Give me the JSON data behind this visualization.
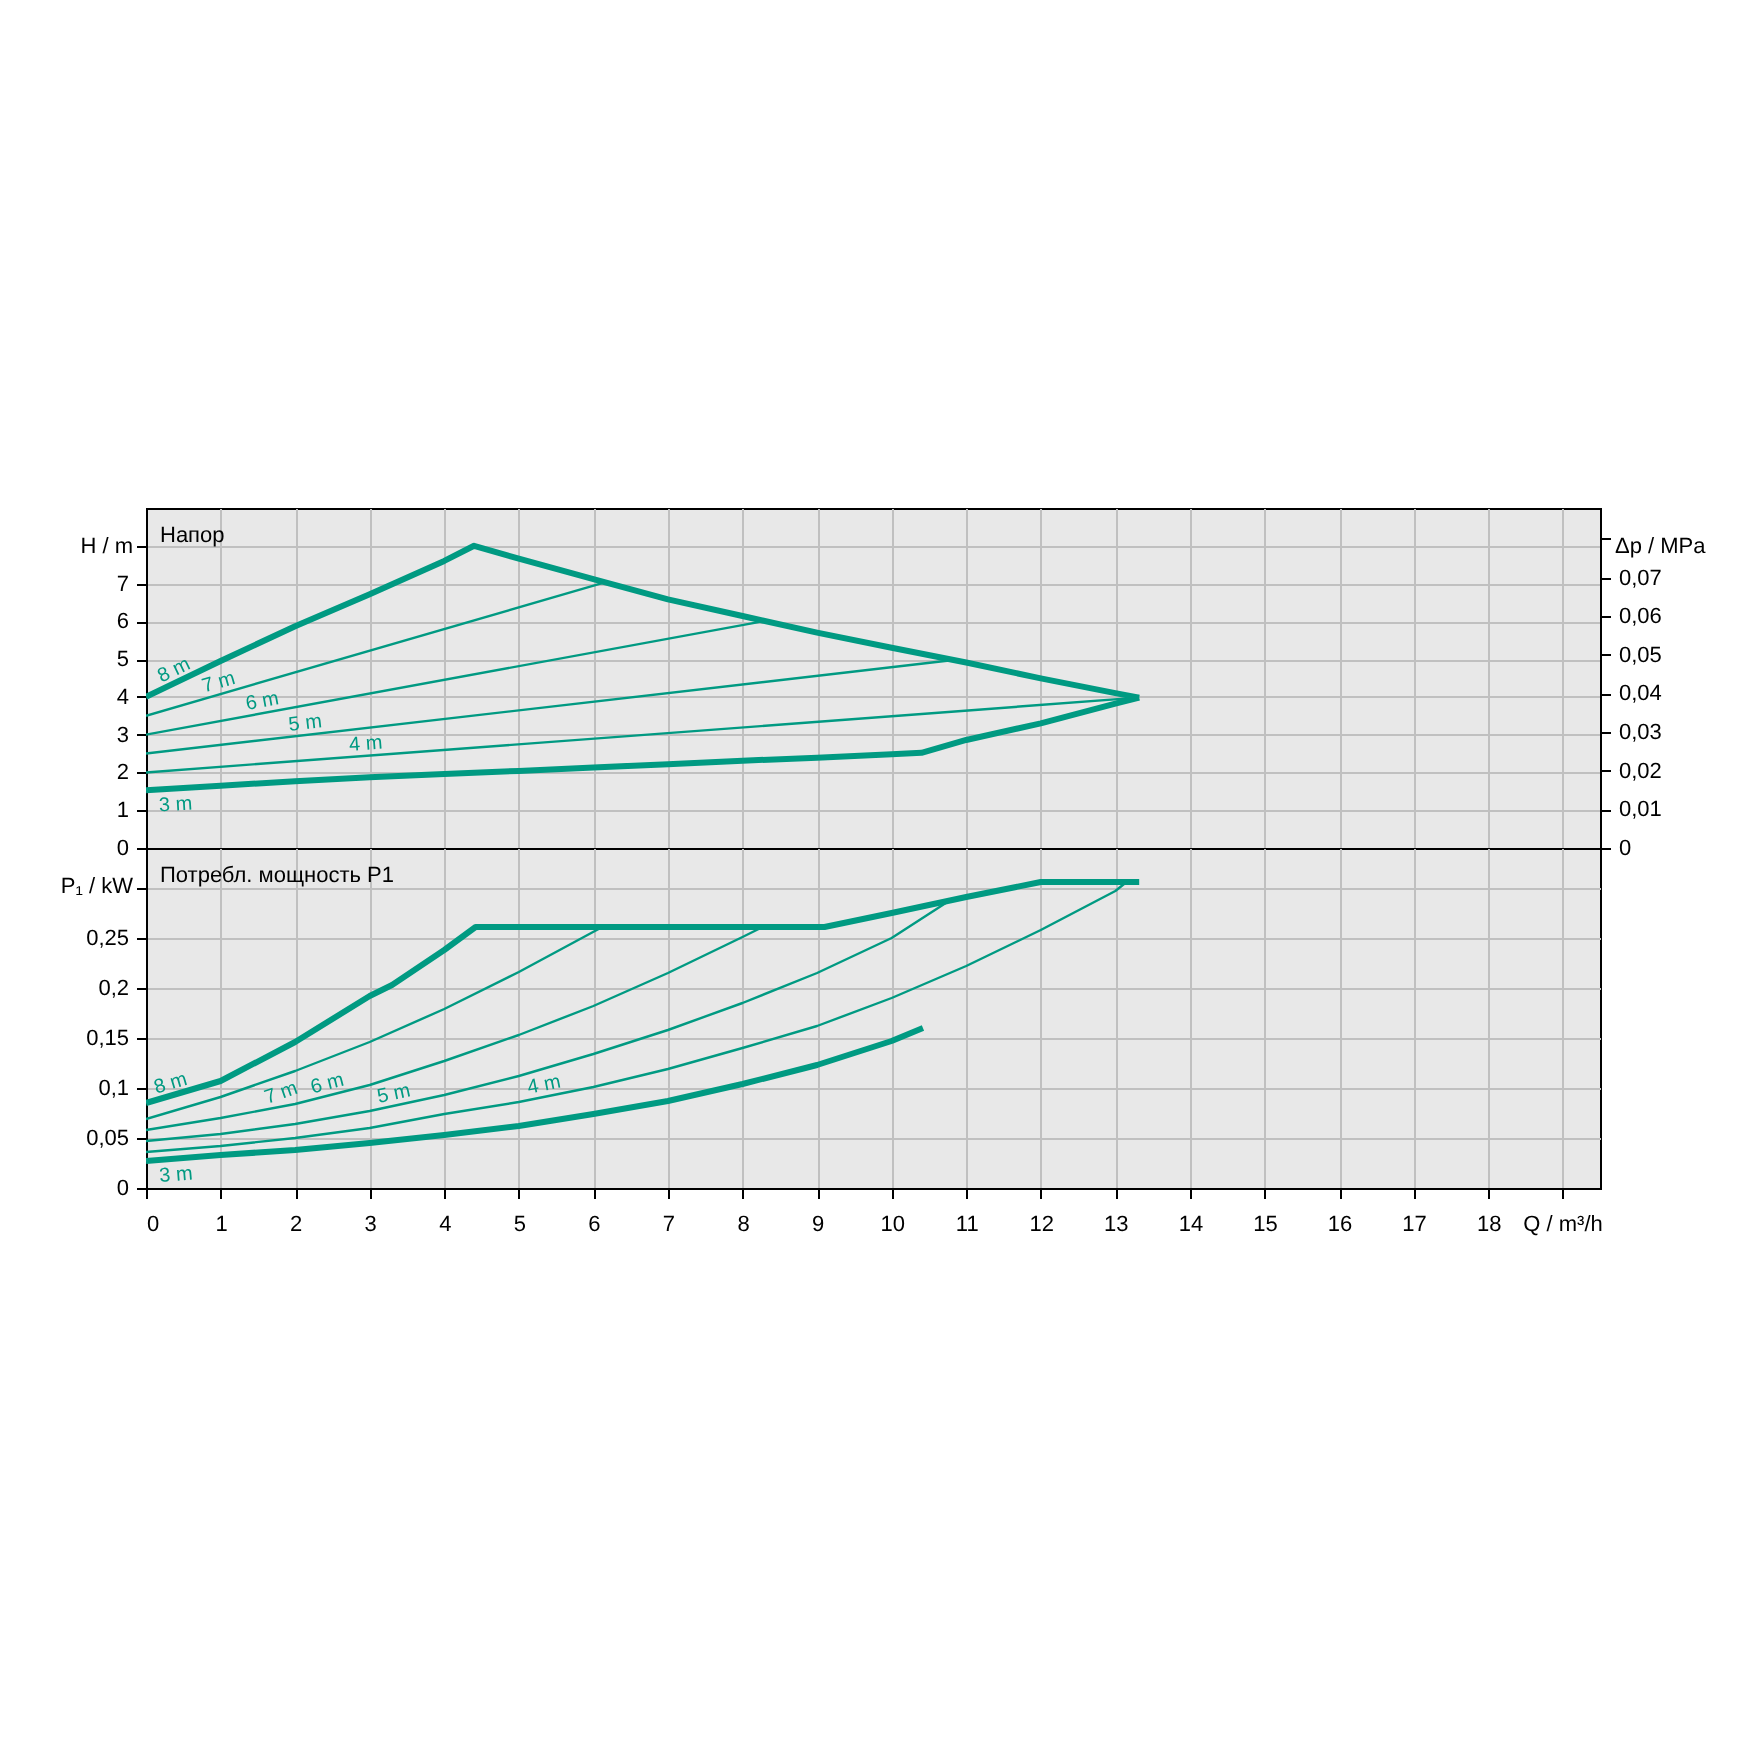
{
  "chart_data": [
    {
      "type": "line",
      "title": "Напор",
      "ylabel": "H / m",
      "y2label": "Δp / MPa",
      "xlim": [
        0,
        19.5
      ],
      "xticks": [
        0,
        1,
        2,
        3,
        4,
        5,
        6,
        7,
        8,
        9,
        10,
        11,
        12,
        13,
        14,
        15,
        16,
        17,
        18,
        19
      ],
      "ylim": [
        0,
        9
      ],
      "yticks": [
        0,
        1,
        2,
        3,
        4,
        5,
        6,
        7,
        {
          "value": 8,
          "label": null
        }
      ],
      "y2lim": [
        0,
        0.088
      ],
      "y2ticks": [
        0,
        {
          "value": 0.01,
          "label": "0,01"
        },
        {
          "value": 0.02,
          "label": "0,02"
        },
        {
          "value": 0.03,
          "label": "0,03"
        },
        {
          "value": 0.04,
          "label": "0,04"
        },
        {
          "value": 0.05,
          "label": "0,05"
        },
        {
          "value": 0.06,
          "label": "0,06"
        },
        {
          "value": 0.07,
          "label": "0,07"
        },
        {
          "value": 0.08,
          "label": null
        }
      ],
      "grid": true,
      "tick_labels": "y",
      "series": [
        {
          "name": "8 m",
          "color": "#009a82",
          "x": [
            0,
            1,
            2,
            3,
            4,
            4.4,
            5,
            6,
            7,
            8,
            9,
            10,
            11,
            12,
            13,
            13.32
          ],
          "values": [
            4.0,
            4.95,
            5.87,
            6.72,
            7.6,
            8.0,
            7.66,
            7.12,
            6.58,
            6.14,
            5.7,
            5.3,
            4.91,
            4.49,
            4.1,
            3.98
          ]
        },
        {
          "name": "7 m",
          "color": "#009a82",
          "x": [
            0,
            6.13
          ],
          "values": [
            3.5,
            7.02
          ]
        },
        {
          "name": "6 m",
          "color": "#009a82",
          "x": [
            0,
            8.27
          ],
          "values": [
            3.0,
            6.0
          ]
        },
        {
          "name": "5 m",
          "color": "#009a82",
          "x": [
            0,
            10.8
          ],
          "values": [
            2.5,
            4.97
          ]
        },
        {
          "name": "4 m",
          "color": "#009a82",
          "x": [
            0,
            13.3
          ],
          "values": [
            2.0,
            3.98
          ]
        },
        {
          "name": "3 m",
          "color": "#009a82",
          "x": [
            0,
            1,
            2,
            3,
            4,
            5,
            6,
            7,
            8,
            9,
            10,
            10.4,
            11,
            12,
            13,
            13.32
          ],
          "values": [
            1.53,
            1.65,
            1.77,
            1.87,
            1.96,
            2.04,
            2.13,
            2.22,
            2.31,
            2.39,
            2.48,
            2.52,
            2.86,
            3.3,
            3.82,
            3.98
          ]
        }
      ]
    },
    {
      "type": "line",
      "title": "Потребл. мощность P1",
      "xlabel": "Q / m³/h",
      "ylabel": "P₁ / kW",
      "xlim": [
        0,
        19.5
      ],
      "xticks": [
        0,
        1,
        2,
        3,
        4,
        5,
        6,
        7,
        8,
        9,
        10,
        11,
        12,
        13,
        14,
        15,
        16,
        17,
        18,
        {
          "value": 19,
          "label": null
        }
      ],
      "ylim": [
        0,
        0.34
      ],
      "yticks": [
        0,
        {
          "value": 0.05,
          "label": "0,05"
        },
        {
          "value": 0.1,
          "label": "0,1"
        },
        {
          "value": 0.15,
          "label": "0,15"
        },
        {
          "value": 0.2,
          "label": "0,2"
        },
        {
          "value": 0.25,
          "label": "0,25"
        },
        {
          "value": 0.3,
          "label": null
        }
      ],
      "grid": true,
      "series": [
        {
          "name": "8 m",
          "color": "#009a82",
          "x": [
            0,
            1,
            2,
            3,
            3.3,
            4,
            4.42,
            9.1,
            10,
            11,
            12,
            13.32
          ],
          "values": [
            0.085,
            0.107,
            0.146,
            0.192,
            0.203,
            0.238,
            0.261,
            0.261,
            0.275,
            0.291,
            0.306,
            0.306
          ]
        },
        {
          "name": "7 m",
          "color": "#009a82",
          "x": [
            0,
            1,
            2,
            3,
            4,
            5,
            6.12
          ],
          "values": [
            0.069,
            0.091,
            0.117,
            0.146,
            0.179,
            0.216,
            0.261
          ]
        },
        {
          "name": "6 m",
          "color": "#009a82",
          "x": [
            0,
            1,
            2,
            3,
            4,
            5,
            6,
            7,
            8,
            8.27
          ],
          "values": [
            0.058,
            0.07,
            0.084,
            0.103,
            0.127,
            0.153,
            0.182,
            0.215,
            0.251,
            0.261
          ]
        },
        {
          "name": "5 m",
          "color": "#009a82",
          "x": [
            0,
            1,
            2,
            3,
            4,
            5,
            6,
            7,
            8,
            9,
            10,
            10.83
          ],
          "values": [
            0.047,
            0.054,
            0.064,
            0.077,
            0.093,
            0.112,
            0.134,
            0.158,
            0.185,
            0.215,
            0.25,
            0.29
          ]
        },
        {
          "name": "4 m",
          "color": "#009a82",
          "x": [
            0,
            1,
            2,
            3,
            4,
            5,
            6,
            7,
            8,
            9,
            10,
            11,
            12,
            13,
            13.15
          ],
          "values": [
            0.036,
            0.042,
            0.05,
            0.06,
            0.074,
            0.086,
            0.101,
            0.119,
            0.14,
            0.162,
            0.19,
            0.222,
            0.258,
            0.297,
            0.306
          ]
        },
        {
          "name": "3 m",
          "color": "#009a82",
          "x": [
            0,
            1,
            2,
            3,
            4,
            5,
            6,
            7,
            8,
            9,
            10,
            10.42
          ],
          "values": [
            0.027,
            0.033,
            0.038,
            0.045,
            0.053,
            0.062,
            0.074,
            0.087,
            0.104,
            0.123,
            0.147,
            0.16
          ]
        }
      ]
    }
  ]
}
